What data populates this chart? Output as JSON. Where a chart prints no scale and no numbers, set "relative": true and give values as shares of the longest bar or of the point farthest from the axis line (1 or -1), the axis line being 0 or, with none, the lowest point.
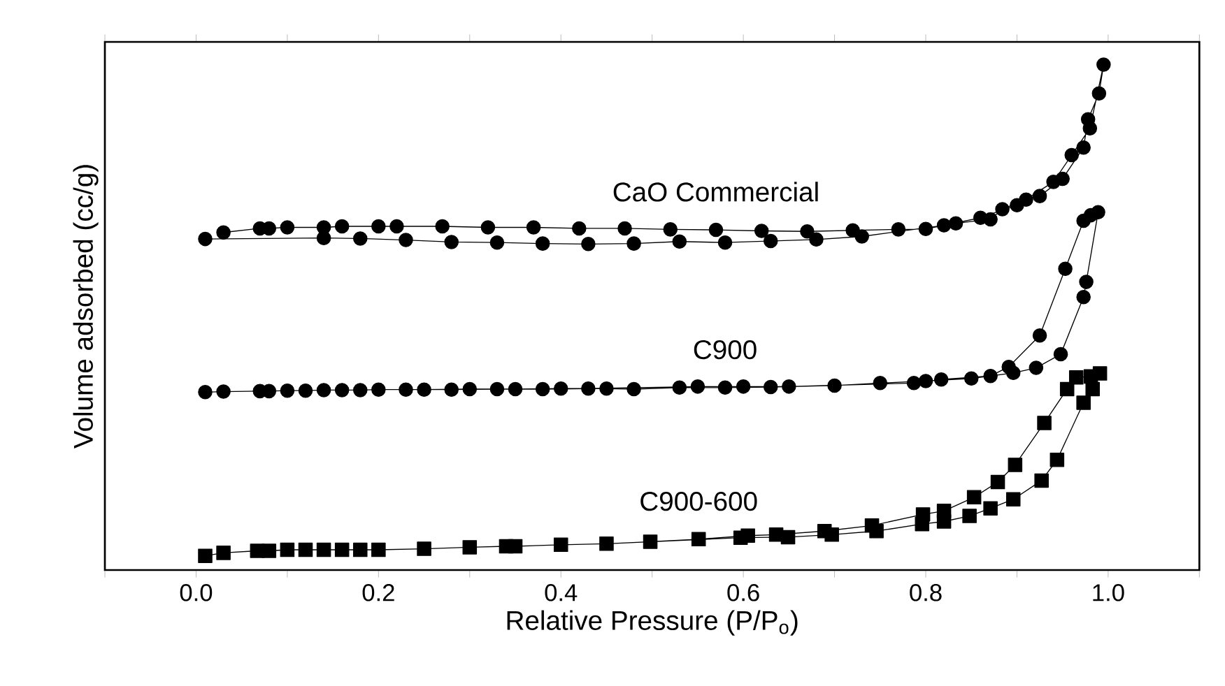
{
  "chart_data": {
    "type": "line",
    "relative": true,
    "xlabel": "Relative Pressure (P/P$_{o}$)",
    "ylabel": "Volume adsorbed (cc/g)",
    "xlim": [
      -0.1,
      1.1
    ],
    "tick_labels": "x",
    "line_style": "solid",
    "xticks": [
      {
        "value": -0.1,
        "label": null
      },
      {
        "value": 0,
        "label": "0.0"
      },
      {
        "value": 0.1,
        "label": null
      },
      {
        "value": 0.2,
        "label": "0.2"
      },
      {
        "value": 0.3,
        "label": null
      },
      {
        "value": 0.4,
        "label": "0.4"
      },
      {
        "value": 0.5,
        "label": null
      },
      {
        "value": 0.6,
        "label": "0.6"
      },
      {
        "value": 0.7,
        "label": null
      },
      {
        "value": 0.8,
        "label": "0.8"
      },
      {
        "value": 0.9,
        "label": null
      },
      {
        "value": 1.0,
        "label": "1.0"
      },
      {
        "value": 1.1,
        "label": null
      }
    ],
    "series": [
      {
        "name": "CaO Commercial",
        "color": "#000000",
        "marker": "circle",
        "x": [
          0.01,
          0.14,
          0.18,
          0.23,
          0.28,
          0.33,
          0.38,
          0.43,
          0.48,
          0.53,
          0.58,
          0.63,
          0.68,
          0.73,
          0.82,
          0.86,
          0.9,
          0.94,
          0.96,
          0.98,
          0.995,
          0.99,
          0.978,
          0.973,
          0.95,
          0.925,
          0.91,
          0.884,
          0.871,
          0.833,
          0.8,
          0.77,
          0.72,
          0.67,
          0.62,
          0.57,
          0.52,
          0.47,
          0.42,
          0.37,
          0.32,
          0.27,
          0.22,
          0.2,
          0.16,
          0.14,
          0.1,
          0.08,
          0.07,
          0.03
        ],
        "values": [
          0.655,
          0.657,
          0.656,
          0.653,
          0.649,
          0.648,
          0.646,
          0.645,
          0.646,
          0.65,
          0.648,
          0.651,
          0.654,
          0.66,
          0.682,
          0.697,
          0.722,
          0.768,
          0.821,
          0.874,
          1,
          0.943,
          0.892,
          0.836,
          0.774,
          0.74,
          0.733,
          0.714,
          0.694,
          0.686,
          0.675,
          0.674,
          0.672,
          0.67,
          0.671,
          0.673,
          0.674,
          0.676,
          0.676,
          0.678,
          0.678,
          0.68,
          0.68,
          0.68,
          0.68,
          0.678,
          0.678,
          0.676,
          0.676,
          0.668
        ]
      },
      {
        "name": "C900",
        "color": "#000000",
        "marker": "circle",
        "x": [
          0.01,
          0.03,
          0.07,
          0.08,
          0.1,
          0.12,
          0.14,
          0.16,
          0.18,
          0.2,
          0.25,
          0.3,
          0.35,
          0.4,
          0.45,
          0.48,
          0.53,
          0.58,
          0.63,
          0.7,
          0.75,
          0.8,
          0.85,
          0.896,
          0.921,
          0.948,
          0.973,
          0.976,
          0.989,
          0.981,
          0.973,
          0.953,
          0.925,
          0.891,
          0.871,
          0.817,
          0.787,
          0.65,
          0.6,
          0.55,
          0.43,
          0.38,
          0.33,
          0.28,
          0.23
        ],
        "values": [
          0.352,
          0.353,
          0.354,
          0.354,
          0.355,
          0.355,
          0.356,
          0.356,
          0.356,
          0.357,
          0.357,
          0.358,
          0.358,
          0.359,
          0.359,
          0.358,
          0.361,
          0.361,
          0.362,
          0.365,
          0.37,
          0.374,
          0.379,
          0.39,
          0.4,
          0.427,
          0.54,
          0.57,
          0.708,
          0.702,
          0.691,
          0.596,
          0.464,
          0.402,
          0.384,
          0.377,
          0.37,
          0.363,
          0.363,
          0.363,
          0.359,
          0.358,
          0.358,
          0.357,
          0.357
        ]
      },
      {
        "name": "C900-600",
        "color": "#000000",
        "marker": "square",
        "x": [
          0.01,
          0.03,
          0.067,
          0.08,
          0.1,
          0.12,
          0.14,
          0.16,
          0.18,
          0.2,
          0.25,
          0.3,
          0.34,
          0.35,
          0.4,
          0.45,
          0.597,
          0.649,
          0.697,
          0.746,
          0.796,
          0.82,
          0.848,
          0.871,
          0.896,
          0.927,
          0.944,
          0.973,
          0.983,
          0.991,
          0.981,
          0.965,
          0.955,
          0.93,
          0.898,
          0.879,
          0.853,
          0.82,
          0.797,
          0.741,
          0.689,
          0.636,
          0.605,
          0.551,
          0.498
        ],
        "values": [
          0.028,
          0.034,
          0.038,
          0.038,
          0.04,
          0.04,
          0.04,
          0.04,
          0.04,
          0.04,
          0.042,
          0.045,
          0.047,
          0.047,
          0.05,
          0.052,
          0.064,
          0.065,
          0.07,
          0.077,
          0.091,
          0.096,
          0.107,
          0.122,
          0.14,
          0.177,
          0.218,
          0.331,
          0.358,
          0.389,
          0.383,
          0.381,
          0.358,
          0.291,
          0.208,
          0.174,
          0.144,
          0.117,
          0.11,
          0.088,
          0.077,
          0.07,
          0.068,
          0.061,
          0.056
        ]
      }
    ]
  }
}
